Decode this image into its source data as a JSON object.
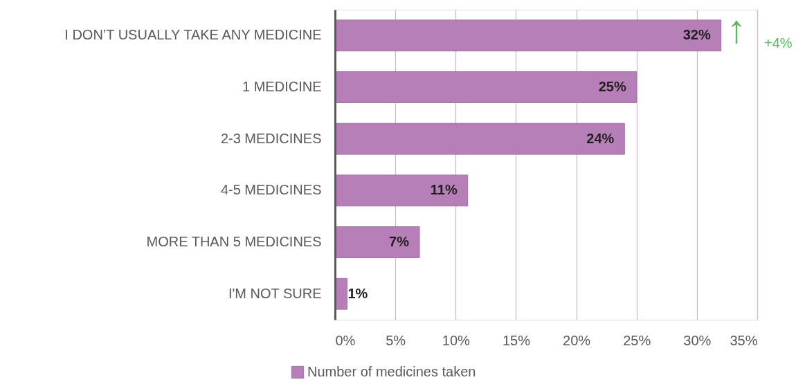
{
  "chart_data": {
    "type": "bar",
    "orientation": "horizontal",
    "categories": [
      "I DON’T USUALLY TAKE ANY MEDICINE",
      "1 MEDICINE",
      "2-3 MEDICINES",
      "4-5 MEDICINES",
      "MORE THAN 5 MEDICINES",
      "I'M NOT SURE"
    ],
    "series": [
      {
        "name": "Number of medicines taken",
        "color": "#b77fb7",
        "values": [
          32,
          25,
          24,
          11,
          7,
          1
        ],
        "value_labels": [
          "32%",
          "25%",
          "24%",
          "11%",
          "7%",
          "1%"
        ]
      }
    ],
    "xlim": [
      0,
      35
    ],
    "xticks": [
      {
        "value": 0,
        "label": "0%"
      },
      {
        "value": 5,
        "label": "5%"
      },
      {
        "value": 10,
        "label": "10%"
      },
      {
        "value": 15,
        "label": "15%"
      },
      {
        "value": 20,
        "label": "20%"
      },
      {
        "value": 25,
        "label": "25%"
      },
      {
        "value": 30,
        "label": "30%"
      },
      {
        "value": 35,
        "label": "35%"
      }
    ],
    "grid": "x",
    "legend": "bottom",
    "annotations": [
      "↑",
      "+4%"
    ]
  }
}
